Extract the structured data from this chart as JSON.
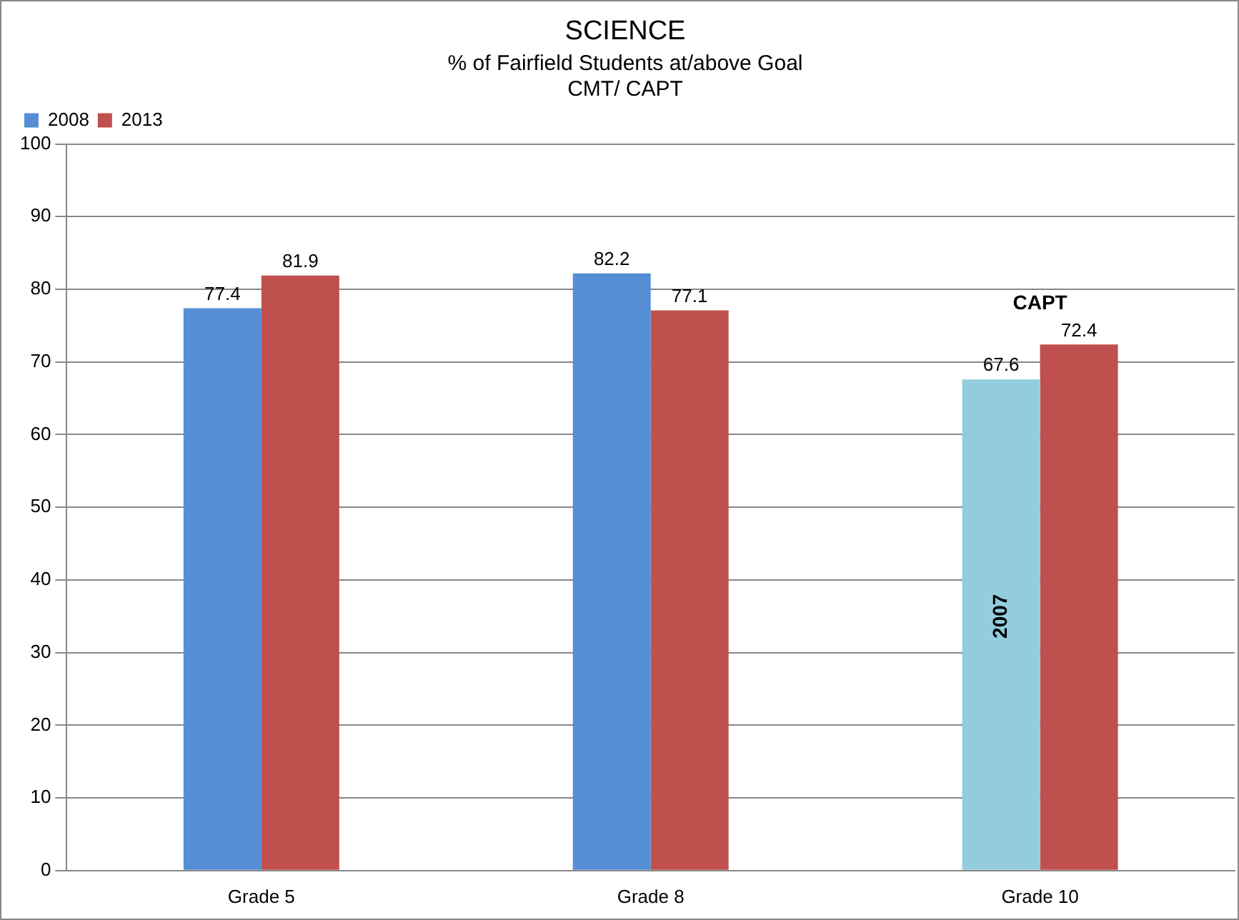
{
  "chart_data": {
    "type": "bar",
    "title": "SCIENCE",
    "subtitle": "% of Fairfield Students at/above Goal\nCMT/ CAPT",
    "categories": [
      "Grade 5",
      "Grade 8",
      "Grade 10"
    ],
    "series": [
      {
        "name": "2008",
        "color": "#558ed5",
        "colors": [
          "#558ed5",
          "#558ed5",
          "#93cddd"
        ],
        "values": [
          77.4,
          82.2,
          67.6
        ]
      },
      {
        "name": "2013",
        "color": "#c0504d",
        "values": [
          81.9,
          77.1,
          72.4
        ]
      }
    ],
    "ylim": [
      0,
      100
    ],
    "yticks": [
      0,
      10,
      20,
      30,
      40,
      50,
      60,
      70,
      80,
      90,
      100
    ],
    "grid": "y",
    "legend": "top left",
    "data_labels": true,
    "annotations": [
      "CAPT",
      "2007"
    ]
  }
}
